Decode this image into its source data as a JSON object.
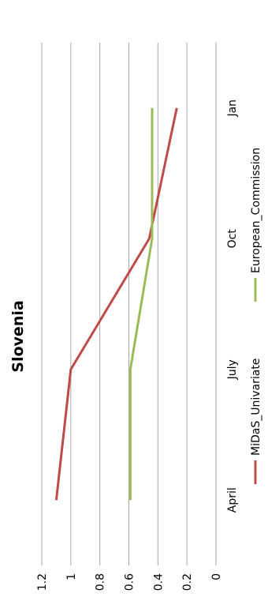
{
  "chart_data": {
    "type": "line",
    "title": "Slovenia",
    "categories": [
      "April",
      "July",
      "Oct",
      "Jan"
    ],
    "ylim": [
      0,
      1.2
    ],
    "ytick_labels": [
      "0",
      "0.2",
      "0.4",
      "0.6",
      "0.8",
      "1",
      "1.2"
    ],
    "grid": true,
    "legend_position": "bottom",
    "series": [
      {
        "name": "MiDaS_Univariate",
        "color": "#be4b48",
        "values": [
          1.1,
          1.0,
          0.46,
          0.27
        ]
      },
      {
        "name": "European_Commission",
        "color": "#9bbb59",
        "values": [
          0.59,
          0.59,
          0.44,
          0.44
        ]
      }
    ]
  }
}
